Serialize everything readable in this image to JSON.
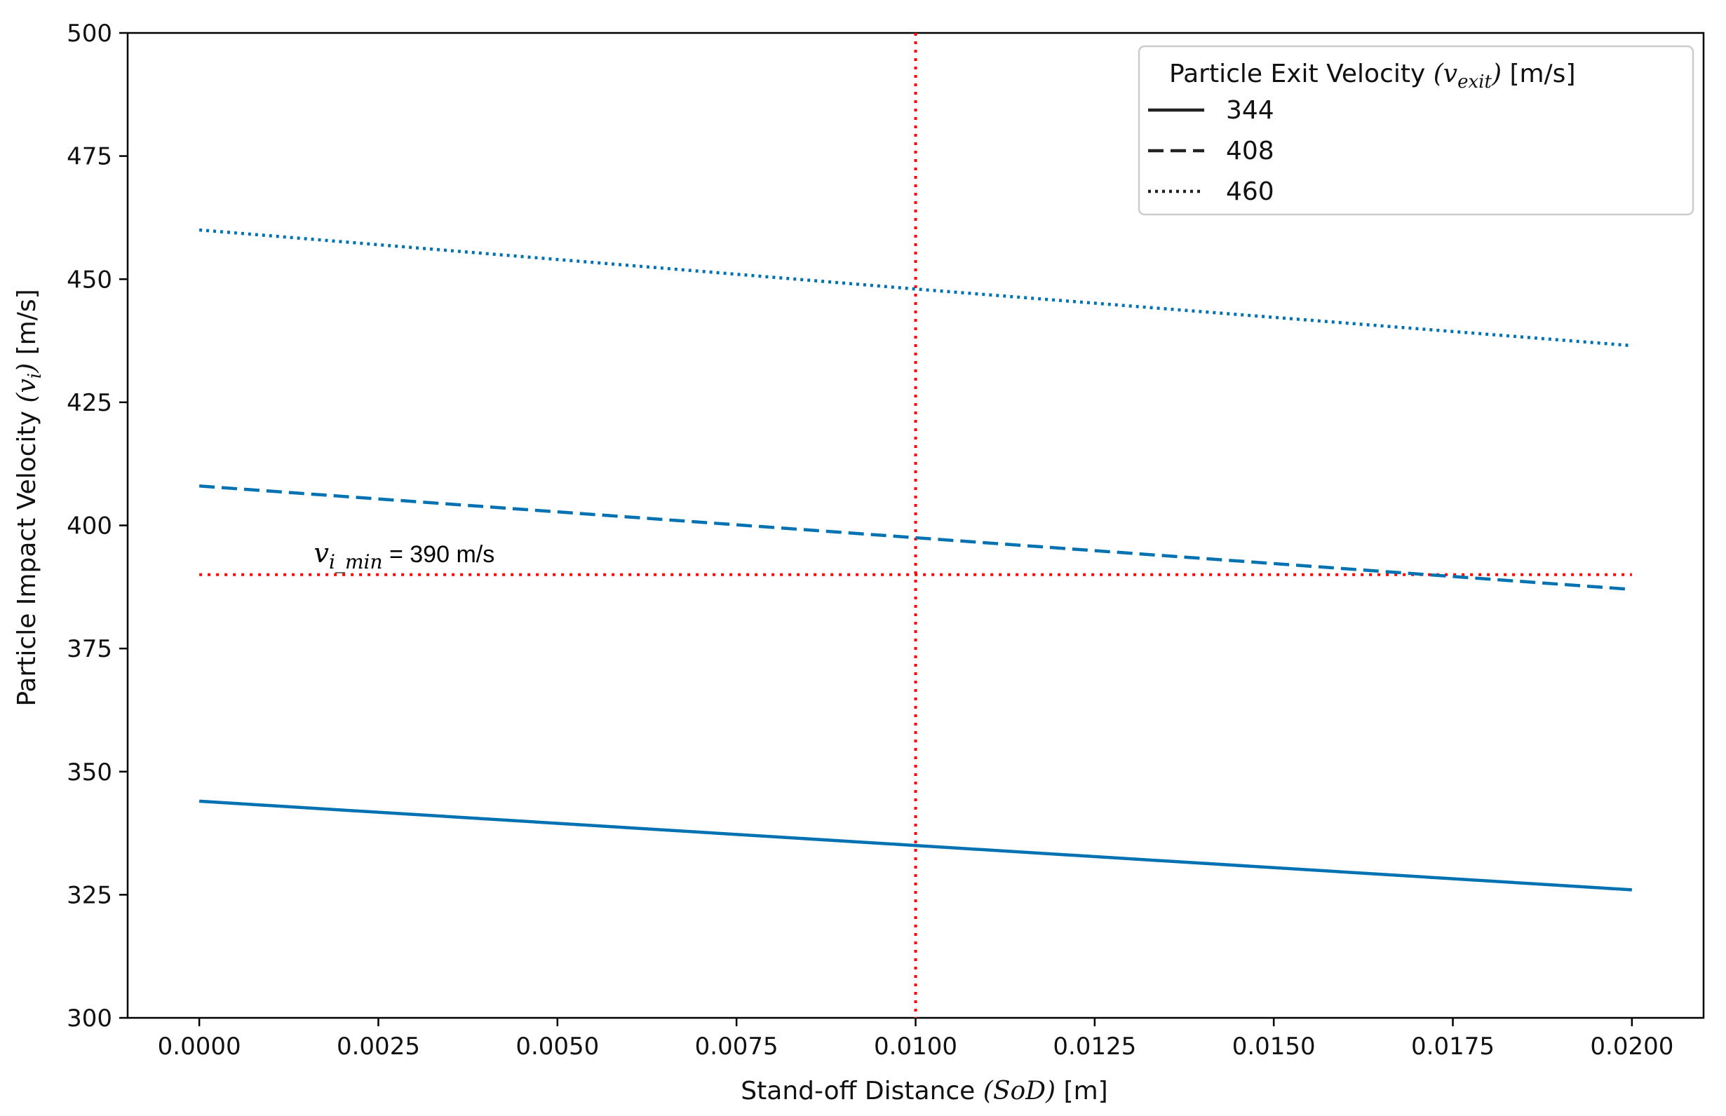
{
  "chart_data": {
    "type": "line",
    "xlabel_prefix": "Stand-off Distance ",
    "xlabel_math": "(SoD)",
    "xlabel_suffix": " [m]",
    "ylabel_prefix": "Particle Impact Velocity ",
    "ylabel_math": "(v",
    "ylabel_math_sub": "i",
    "ylabel_math_close": ")",
    "ylabel_suffix": " [m/s]",
    "xlim": [
      -0.001,
      0.021
    ],
    "ylim": [
      300,
      500
    ],
    "xticks": [
      0.0,
      0.0025,
      0.005,
      0.0075,
      0.01,
      0.0125,
      0.015,
      0.0175,
      0.02
    ],
    "xtick_labels": [
      "0.0000",
      "0.0025",
      "0.0050",
      "0.0075",
      "0.0100",
      "0.0125",
      "0.0150",
      "0.0175",
      "0.0200"
    ],
    "yticks": [
      300,
      325,
      350,
      375,
      400,
      425,
      450,
      475,
      500
    ],
    "ytick_labels": [
      "300",
      "325",
      "350",
      "375",
      "400",
      "425",
      "450",
      "475",
      "500"
    ],
    "grid": false,
    "legend": {
      "placement": "top-right",
      "title_prefix": "Particle Exit Velocity ",
      "title_math": "(v",
      "title_math_sub": "exit",
      "title_math_close": ")",
      "title_suffix": " [m/s]"
    },
    "series": [
      {
        "name": "344",
        "style": "solid",
        "x": [
          0.0,
          0.01,
          0.02
        ],
        "values": [
          344,
          335,
          326
        ]
      },
      {
        "name": "408",
        "style": "dashed",
        "x": [
          0.0,
          0.01,
          0.02
        ],
        "values": [
          408,
          397.5,
          387
        ]
      },
      {
        "name": "460",
        "style": "dotted",
        "x": [
          0.0,
          0.01,
          0.02
        ],
        "values": [
          460,
          448,
          436.5
        ]
      }
    ],
    "reference_lines": {
      "horizontal": {
        "y": 390,
        "x_range": [
          0.0,
          0.02
        ],
        "color": "#ff0000"
      },
      "vertical": {
        "x": 0.01,
        "color": "#ff0000"
      }
    },
    "annotation": {
      "math": "v",
      "math_sub": "i_min",
      "text": " = 390 m/s",
      "x": 0.0016,
      "y": 392.5
    },
    "colors": {
      "series": "#0072b2",
      "reference": "#ff0000",
      "legend_line": "#222222"
    }
  }
}
